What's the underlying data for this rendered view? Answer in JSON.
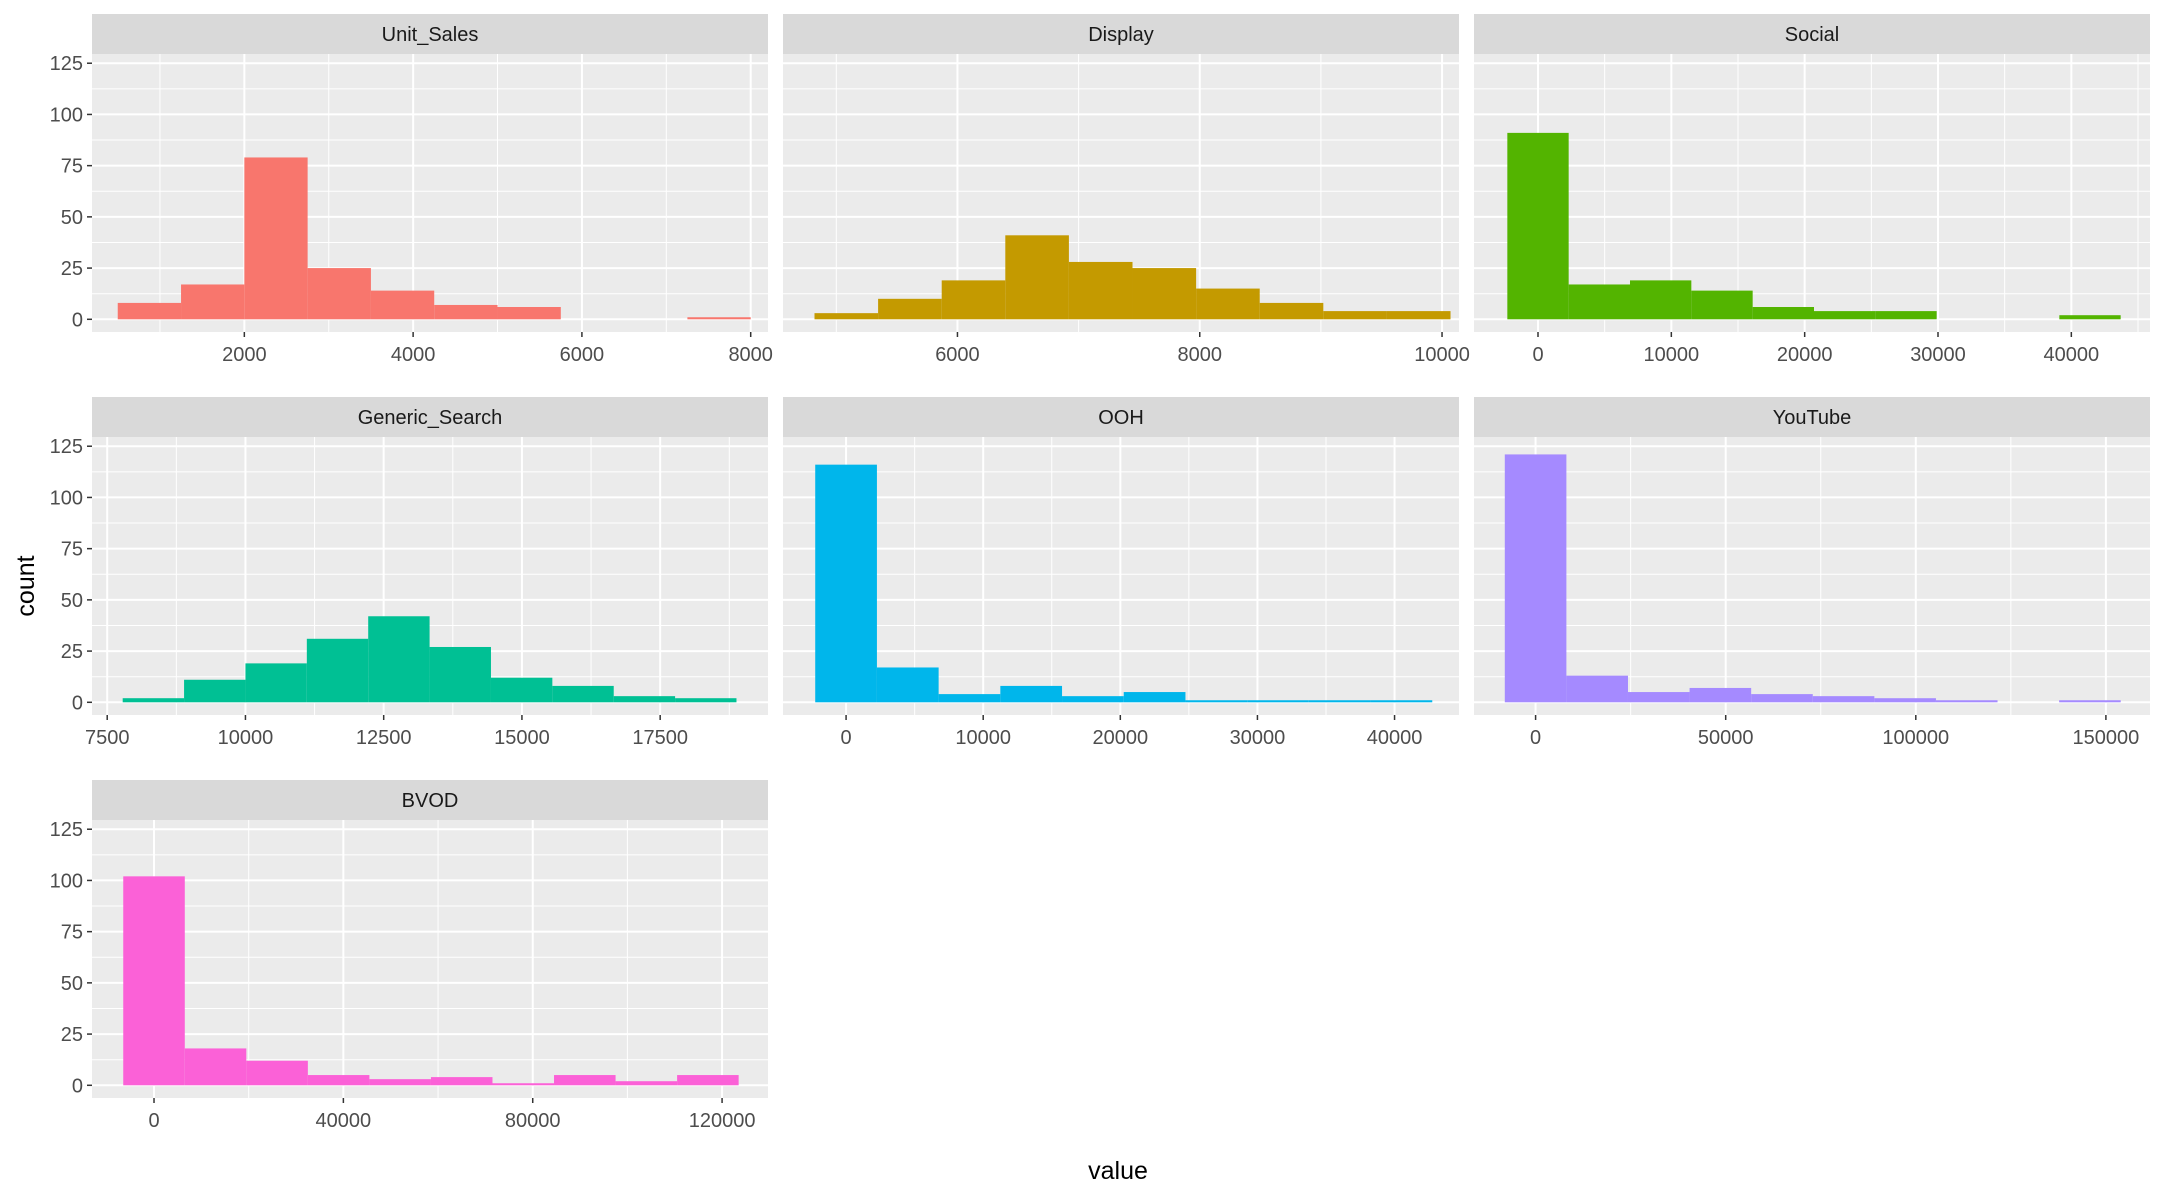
{
  "chart_data": {
    "type": "histogram",
    "xlabel": "value",
    "ylabel": "count",
    "grid": true,
    "ylim": [
      -6.2,
      129.5
    ],
    "y_ticks": [
      0,
      25,
      50,
      75,
      100,
      125
    ],
    "panels": [
      {
        "name": "Unit_Sales",
        "color": "#F8766D",
        "xlim": [
          195,
          8205
        ],
        "x_ticks": [
          2000,
          4000,
          6000,
          8000
        ],
        "bins": [
          {
            "x0": 500,
            "x1": 1250,
            "count": 8
          },
          {
            "x0": 1250,
            "x1": 2000,
            "count": 17
          },
          {
            "x0": 2000,
            "x1": 2750,
            "count": 79
          },
          {
            "x0": 2750,
            "x1": 3500,
            "count": 25
          },
          {
            "x0": 3500,
            "x1": 4250,
            "count": 14
          },
          {
            "x0": 4250,
            "x1": 5000,
            "count": 7
          },
          {
            "x0": 5000,
            "x1": 5750,
            "count": 6
          },
          {
            "x0": 5750,
            "x1": 6500,
            "count": 0
          },
          {
            "x0": 6500,
            "x1": 7250,
            "count": 0
          },
          {
            "x0": 7250,
            "x1": 8000,
            "count": 1
          }
        ]
      },
      {
        "name": "Display",
        "color": "#C49A00",
        "xlim": [
          4560,
          10140
        ],
        "x_ticks": [
          6000,
          8000,
          10000
        ],
        "bins": [
          {
            "x0": 4820,
            "x1": 5345,
            "count": 3
          },
          {
            "x0": 5345,
            "x1": 5870,
            "count": 10
          },
          {
            "x0": 5870,
            "x1": 6395,
            "count": 19
          },
          {
            "x0": 6395,
            "x1": 6920,
            "count": 41
          },
          {
            "x0": 6920,
            "x1": 7445,
            "count": 28
          },
          {
            "x0": 7445,
            "x1": 7970,
            "count": 25
          },
          {
            "x0": 7970,
            "x1": 8495,
            "count": 15
          },
          {
            "x0": 8495,
            "x1": 9020,
            "count": 8
          },
          {
            "x0": 9020,
            "x1": 9545,
            "count": 4
          },
          {
            "x0": 9545,
            "x1": 10070,
            "count": 4
          }
        ]
      },
      {
        "name": "Social",
        "color": "#53B400",
        "xlim": [
          -4800,
          45900
        ],
        "x_ticks": [
          0,
          10000,
          20000,
          30000,
          40000
        ],
        "bins": [
          {
            "x0": -2300,
            "x1": 2300,
            "count": 91
          },
          {
            "x0": 2300,
            "x1": 6900,
            "count": 17
          },
          {
            "x0": 6900,
            "x1": 11500,
            "count": 19
          },
          {
            "x0": 11500,
            "x1": 16100,
            "count": 14
          },
          {
            "x0": 16100,
            "x1": 20700,
            "count": 6
          },
          {
            "x0": 20700,
            "x1": 25300,
            "count": 4
          },
          {
            "x0": 25300,
            "x1": 29900,
            "count": 4
          },
          {
            "x0": 29900,
            "x1": 34500,
            "count": 0
          },
          {
            "x0": 34500,
            "x1": 39100,
            "count": 0
          },
          {
            "x0": 39100,
            "x1": 43700,
            "count": 2
          }
        ]
      },
      {
        "name": "Generic_Search",
        "color": "#00C094",
        "xlim": [
          7225,
          19450
        ],
        "x_ticks": [
          7500,
          10000,
          12500,
          15000,
          17500
        ],
        "bins": [
          {
            "x0": 7780,
            "x1": 8890,
            "count": 2
          },
          {
            "x0": 8890,
            "x1": 10000,
            "count": 11
          },
          {
            "x0": 10000,
            "x1": 11110,
            "count": 19
          },
          {
            "x0": 11110,
            "x1": 12220,
            "count": 31
          },
          {
            "x0": 12220,
            "x1": 13330,
            "count": 42
          },
          {
            "x0": 13330,
            "x1": 14440,
            "count": 27
          },
          {
            "x0": 14440,
            "x1": 15550,
            "count": 12
          },
          {
            "x0": 15550,
            "x1": 16660,
            "count": 8
          },
          {
            "x0": 16660,
            "x1": 17770,
            "count": 3
          },
          {
            "x0": 17770,
            "x1": 18880,
            "count": 2
          }
        ]
      },
      {
        "name": "OOH",
        "color": "#00B6EB",
        "xlim": [
          -4600,
          44700
        ],
        "x_ticks": [
          0,
          10000,
          20000,
          30000,
          40000
        ],
        "bins": [
          {
            "x0": -2250,
            "x1": 2250,
            "count": 116
          },
          {
            "x0": 2250,
            "x1": 6750,
            "count": 17
          },
          {
            "x0": 6750,
            "x1": 11250,
            "count": 4
          },
          {
            "x0": 11250,
            "x1": 15750,
            "count": 8
          },
          {
            "x0": 15750,
            "x1": 20250,
            "count": 3
          },
          {
            "x0": 20250,
            "x1": 24750,
            "count": 5
          },
          {
            "x0": 24750,
            "x1": 29250,
            "count": 1
          },
          {
            "x0": 29250,
            "x1": 33750,
            "count": 1
          },
          {
            "x0": 33750,
            "x1": 38250,
            "count": 1
          },
          {
            "x0": 38250,
            "x1": 42750,
            "count": 1
          }
        ]
      },
      {
        "name": "YouTube",
        "color": "#A58AFF",
        "xlim": [
          -16200,
          161600
        ],
        "x_ticks": [
          0,
          50000,
          100000,
          150000
        ],
        "bins": [
          {
            "x0": -8100,
            "x1": 8100,
            "count": 121
          },
          {
            "x0": 8100,
            "x1": 24300,
            "count": 13
          },
          {
            "x0": 24300,
            "x1": 40500,
            "count": 5
          },
          {
            "x0": 40500,
            "x1": 56700,
            "count": 7
          },
          {
            "x0": 56700,
            "x1": 72900,
            "count": 4
          },
          {
            "x0": 72900,
            "x1": 89100,
            "count": 3
          },
          {
            "x0": 89100,
            "x1": 105300,
            "count": 2
          },
          {
            "x0": 105300,
            "x1": 121500,
            "count": 1
          },
          {
            "x0": 121500,
            "x1": 137700,
            "count": 0
          },
          {
            "x0": 137700,
            "x1": 153900,
            "count": 1
          }
        ]
      },
      {
        "name": "BVOD",
        "color": "#FB61D7",
        "xlim": [
          -13100,
          129700
        ],
        "x_ticks": [
          0,
          40000,
          80000,
          120000
        ],
        "bins": [
          {
            "x0": -6500,
            "x1": 6500,
            "count": 102
          },
          {
            "x0": 6500,
            "x1": 19500,
            "count": 18
          },
          {
            "x0": 19500,
            "x1": 32500,
            "count": 12
          },
          {
            "x0": 32500,
            "x1": 45500,
            "count": 5
          },
          {
            "x0": 45500,
            "x1": 58500,
            "count": 3
          },
          {
            "x0": 58500,
            "x1": 71500,
            "count": 4
          },
          {
            "x0": 71500,
            "x1": 84500,
            "count": 1
          },
          {
            "x0": 84500,
            "x1": 97500,
            "count": 5
          },
          {
            "x0": 97500,
            "x1": 110500,
            "count": 2
          },
          {
            "x0": 110500,
            "x1": 123500,
            "count": 5
          }
        ]
      }
    ]
  }
}
